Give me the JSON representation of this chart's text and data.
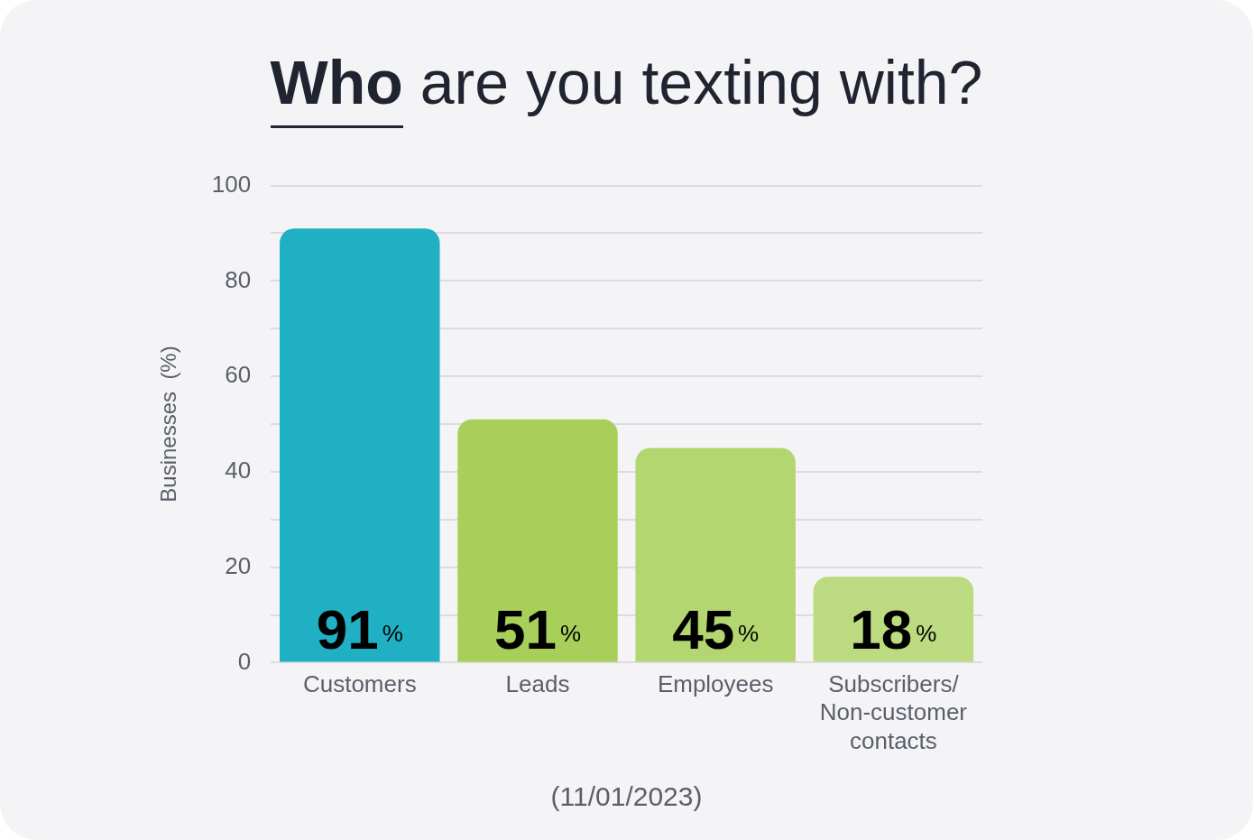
{
  "chart_data": {
    "type": "bar",
    "title": "Who are you texting with?",
    "ylabel": "Businesses  (%)",
    "categories": [
      "Customers",
      "Leads",
      "Employees",
      "Subscribers/ Non-customer contacts"
    ],
    "values": [
      91,
      51,
      45,
      18
    ],
    "colors": [
      "#20b0c4",
      "#a8cf5a",
      "#b3d670",
      "#bcdb80"
    ],
    "value_labels": [
      "91%",
      "51%",
      "45%",
      "18%"
    ],
    "ylim": [
      0,
      100
    ],
    "yticks": [
      0,
      {
        "value": 10,
        "label": null
      },
      20,
      {
        "value": 30,
        "label": null
      },
      40,
      {
        "value": 50,
        "label": null
      },
      60,
      {
        "value": 70,
        "label": null
      },
      80,
      {
        "value": 90,
        "label": null
      },
      100
    ],
    "grid": "y",
    "legend": false,
    "annotations": [
      "(11/01/2023)"
    ]
  }
}
